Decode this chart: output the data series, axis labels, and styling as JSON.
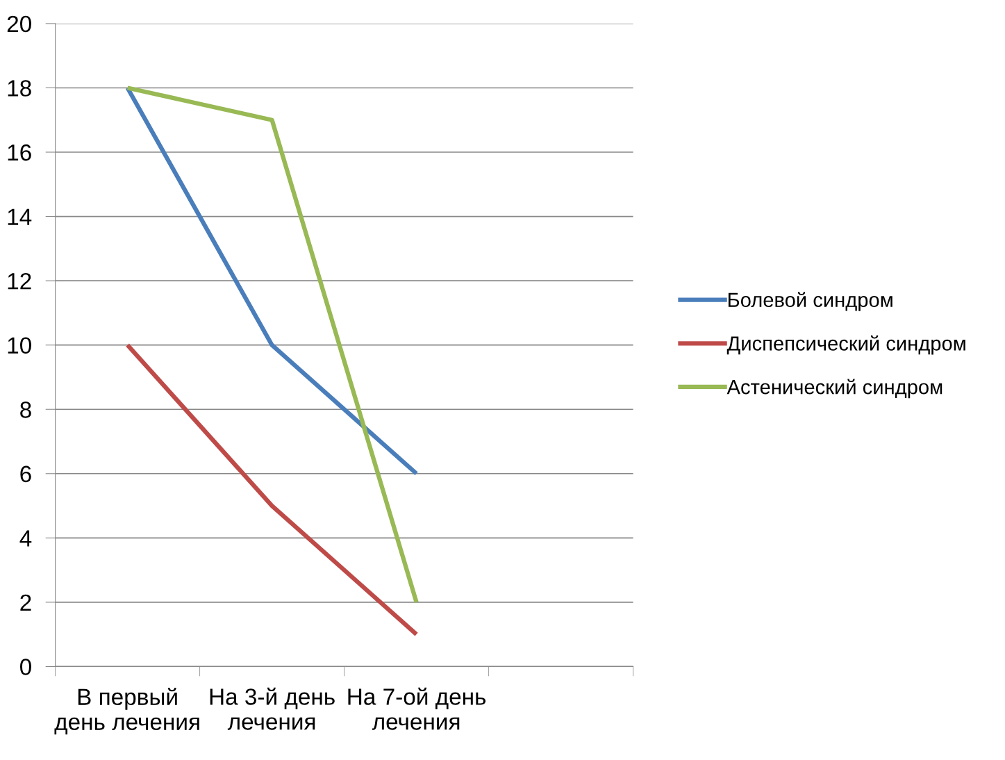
{
  "chart_data": {
    "type": "line",
    "categories": [
      "В первый\nдень лечения",
      "На 3-й день\nлечения",
      "На 7-ой день\nлечения",
      null
    ],
    "series": [
      {
        "name": "Болевой синдром",
        "color": "#4a7ebb",
        "values": [
          18,
          10,
          6,
          null
        ]
      },
      {
        "name": "Диспепсический синдром",
        "color": "#be4b48",
        "values": [
          10,
          5,
          1,
          null
        ]
      },
      {
        "name": "Астенический синдром",
        "color": "#98b954",
        "values": [
          18,
          17,
          2,
          null
        ]
      }
    ],
    "ylim": [
      0,
      20
    ],
    "yticks": [
      0,
      2,
      4,
      6,
      8,
      10,
      12,
      14,
      16,
      18,
      20
    ],
    "grid": "y",
    "legend": "right",
    "marker": "none",
    "line_style": "solid"
  }
}
